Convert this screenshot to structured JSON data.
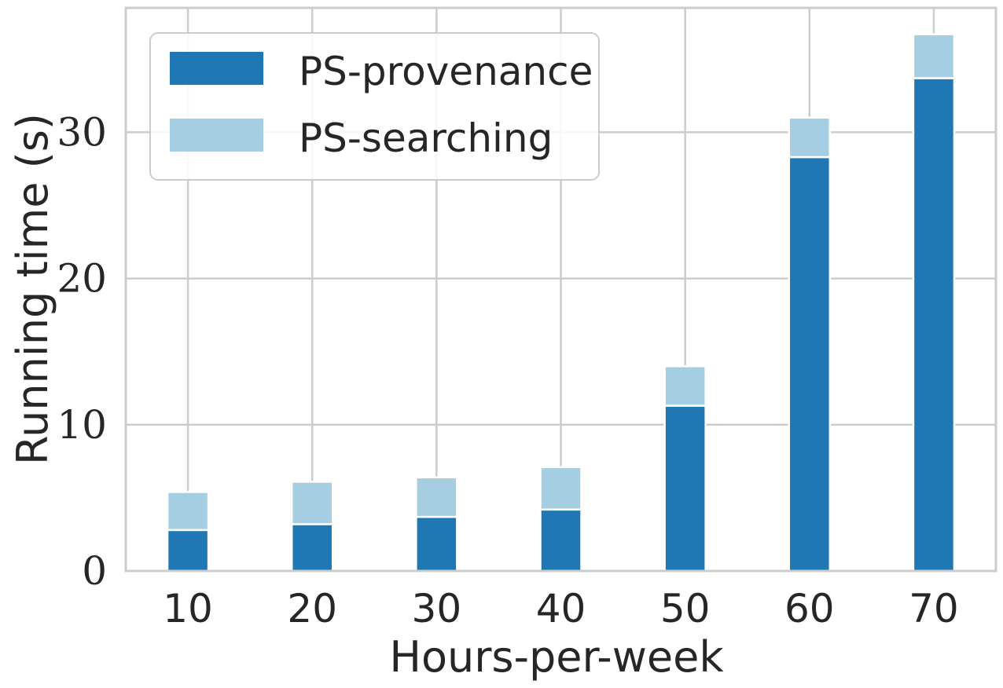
{
  "chart_data": {
    "type": "bar",
    "stacked": true,
    "title": "",
    "xlabel": "Hours-per-week",
    "ylabel": "Running time (s)",
    "categories": [
      "10",
      "20",
      "30",
      "40",
      "50",
      "60",
      "70"
    ],
    "yticks": [
      "0",
      "10",
      "20",
      "30"
    ],
    "ylim": [
      0,
      38.5
    ],
    "grid": true,
    "legend_position": "top-left",
    "series": [
      {
        "name": "PS-provenance",
        "color": "#1f77b4",
        "values": [
          2.8,
          3.2,
          3.7,
          4.2,
          11.3,
          28.3,
          33.7
        ]
      },
      {
        "name": "PS-searching",
        "color": "#a6cee3",
        "values": [
          2.6,
          2.9,
          2.7,
          2.9,
          2.7,
          2.7,
          3.0
        ]
      }
    ]
  }
}
